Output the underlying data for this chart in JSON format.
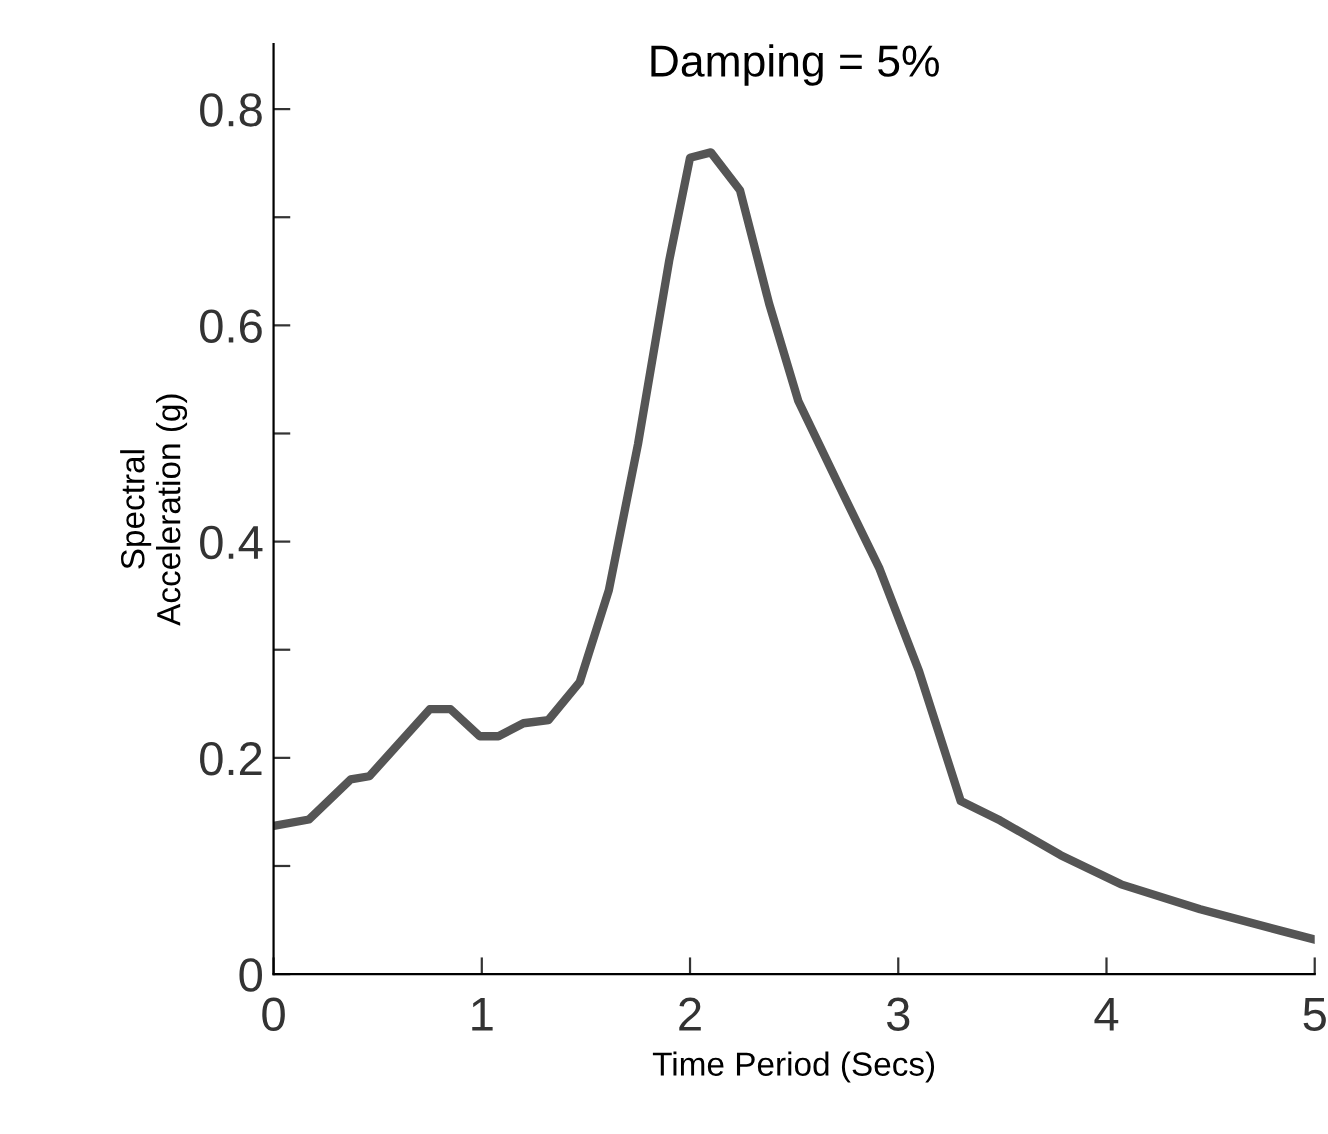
{
  "chart_data": {
    "type": "line",
    "title": "Damping = 5%",
    "xlabel": "Time Period (Secs)",
    "ylabel": "Spectral\nAcceleration (g)",
    "x": [
      0,
      0.17,
      0.37,
      0.46,
      0.75,
      0.85,
      0.99,
      1.08,
      1.2,
      1.32,
      1.47,
      1.61,
      1.75,
      1.9,
      2.0,
      2.1,
      2.24,
      2.38,
      2.52,
      2.72,
      2.91,
      3.1,
      3.3,
      3.49,
      3.78,
      4.07,
      4.45,
      4.84,
      5.0
    ],
    "series": [
      {
        "color": "#555555",
        "values": [
          0.137,
          0.143,
          0.18,
          0.183,
          0.245,
          0.245,
          0.22,
          0.22,
          0.232,
          0.235,
          0.27,
          0.355,
          0.49,
          0.66,
          0.755,
          0.76,
          0.725,
          0.62,
          0.53,
          0.45,
          0.375,
          0.28,
          0.16,
          0.142,
          0.11,
          0.083,
          0.06,
          0.04,
          0.032
        ]
      }
    ],
    "xlim": [
      0,
      5
    ],
    "ylim": [
      0,
      0.86
    ],
    "xticks": [
      0,
      1,
      2,
      3,
      4,
      5
    ],
    "yticks": [
      0,
      {
        "value": 0.1,
        "label": null
      },
      0.2,
      {
        "value": 0.3,
        "label": null
      },
      0.4,
      {
        "value": 0.5,
        "label": null
      },
      0.6,
      {
        "value": 0.7,
        "label": null
      },
      0.8
    ],
    "grid": false,
    "legend": false,
    "marker": "none",
    "line_style": "solid"
  }
}
